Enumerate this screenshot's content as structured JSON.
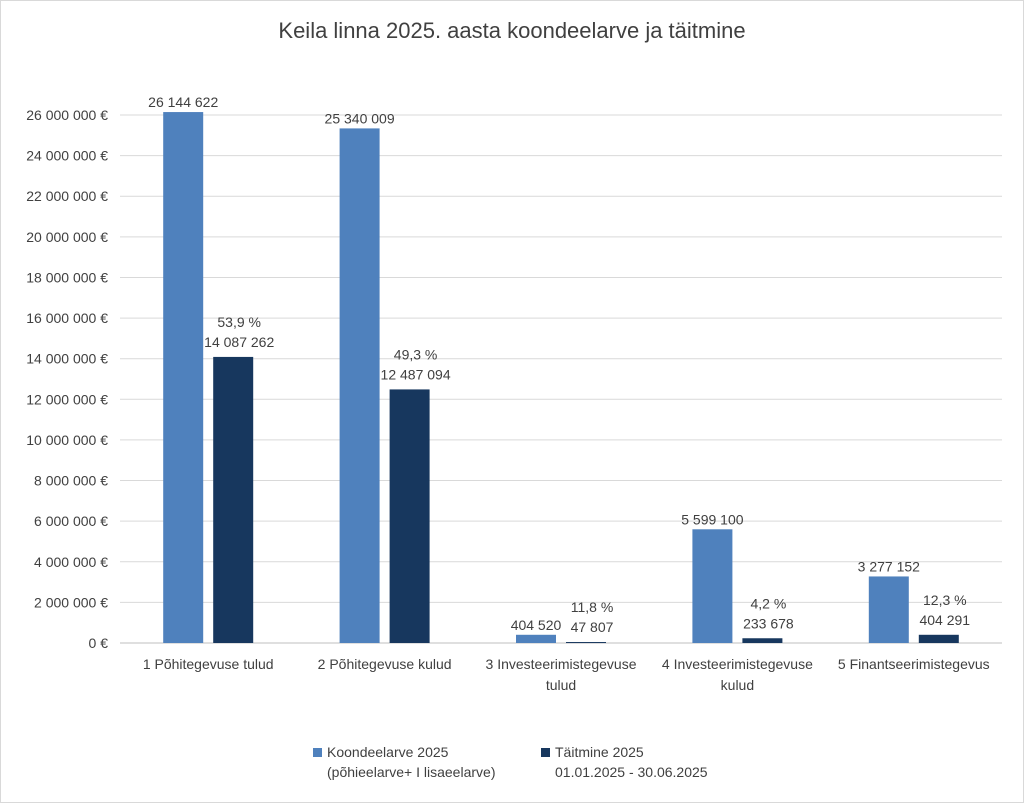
{
  "chart_data": {
    "type": "bar",
    "title": "Keila linna 2025. aasta koondeelarve ja täitmine",
    "categories": [
      [
        "1 Põhitegevuse tulud"
      ],
      [
        "2 Põhitegevuse kulud"
      ],
      [
        "3 Investeerimistegevuse",
        "tulud"
      ],
      [
        "4 Investeerimistegevuse",
        "kulud"
      ],
      [
        "5 Finantseerimistegevus"
      ]
    ],
    "series": [
      {
        "name": [
          "Koondeelarve 2025",
          "(põhieelarve+ I lisaeelarve)"
        ],
        "color": "#4f81bd",
        "values": [
          26144622,
          25340009,
          404520,
          5599100,
          3277152
        ],
        "labels": [
          "26 144 622",
          "25 340 009",
          "404 520",
          "5 599 100",
          "3 277 152"
        ]
      },
      {
        "name": [
          "Täitmine 2025",
          "01.01.2025 - 30.06.2025"
        ],
        "color": "#17375e",
        "values": [
          14087262,
          12487094,
          47807,
          233678,
          404291
        ],
        "labels": [
          "14 087 262",
          "12 487 094",
          "47 807",
          "233 678",
          "404 291"
        ],
        "percent_labels": [
          "53,9 %",
          "49,3 %",
          "11,8 %",
          "4,2 %",
          "12,3 %"
        ]
      }
    ],
    "ylim": [
      0,
      26000000
    ],
    "yticks": [
      0,
      2000000,
      4000000,
      6000000,
      8000000,
      10000000,
      12000000,
      14000000,
      16000000,
      18000000,
      20000000,
      22000000,
      24000000,
      26000000
    ],
    "ytick_labels": [
      "0 €",
      "2 000 000 €",
      "4 000 000 €",
      "6 000 000 €",
      "8 000 000 €",
      "10 000 000 €",
      "12 000 000 €",
      "14 000 000 €",
      "16 000 000 €",
      "18 000 000 €",
      "20 000 000 €",
      "22 000 000 €",
      "24 000 000 €",
      "26 000 000 €"
    ],
    "grid": true,
    "legend_position": "bottom"
  }
}
